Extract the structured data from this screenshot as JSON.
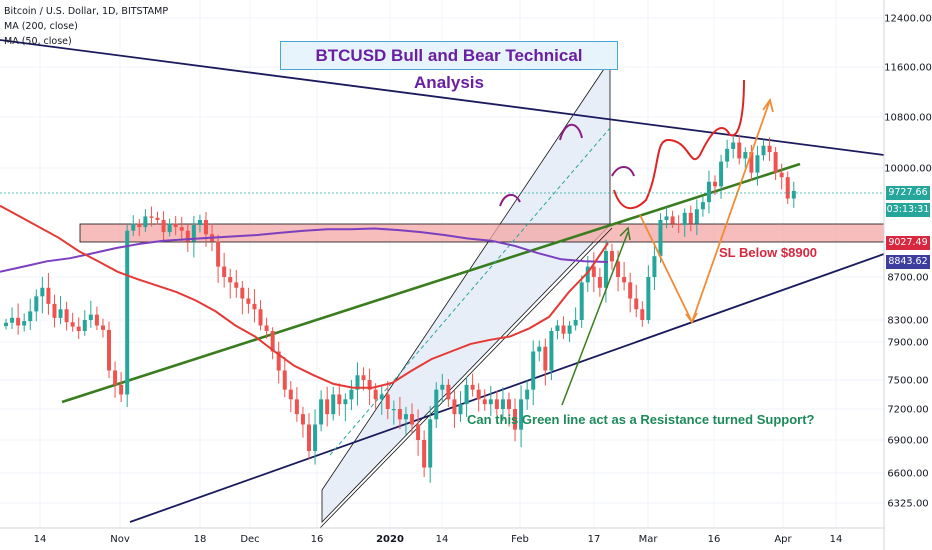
{
  "legend": {
    "symbol": "Bitcoin / U.S. Dollar, 1D, BITSTAMP",
    "ma200": "MA (200, close)",
    "ma50": "MA (50, close)"
  },
  "annotations": {
    "title": "BTCUSD Bull and Bear Technical Analysis",
    "stop_loss": "SL Below $8900",
    "question": "Can this Green line act as a Resistance turned Support?"
  },
  "price_tags": [
    {
      "label": "9727.66",
      "color": "#26a69a",
      "text_color": "#ffffff"
    },
    {
      "label": "03:13:31",
      "color": "#26a69a",
      "text_color": "#ffffff"
    },
    {
      "label": "9027.49",
      "color": "#d8283f",
      "text_color": "#ffffff"
    },
    {
      "label": "8843.62",
      "color": "#3d3d9e",
      "text_color": "#ffffff"
    }
  ],
  "colors": {
    "bull": "#26a69a",
    "bear": "#ef5350",
    "ma200": "#7b3fbf",
    "ma50": "#e53935",
    "trend_green": "#3a7d1f",
    "trend_navy": "#1a1a5e",
    "zone": "#f4a6a6",
    "channel": "#e8eef8",
    "projection": "#f28b35",
    "path_red": "#e02424",
    "arc": "#8a1e84"
  },
  "chart_data": {
    "type": "candlestick",
    "symbol": "Bitcoin / U.S. Dollar",
    "timeframe": "1D",
    "exchange": "BITSTAMP",
    "x_ticks": [
      "14",
      "Nov",
      "18",
      "Dec",
      "16",
      "2020",
      "14",
      "Feb",
      "17",
      "Mar",
      "16",
      "Apr",
      "14"
    ],
    "y_ticks": [
      12400,
      11600,
      10800,
      10000,
      9727.66,
      9027.49,
      8843.62,
      8700,
      8300,
      7900,
      7500,
      7200,
      6900,
      6600,
      6325
    ],
    "ylim": [
      6100,
      12600
    ],
    "last_price": 9727.66,
    "countdown": "03:13:31",
    "ma200_last": 8843.62,
    "ma50_last": 9027.49,
    "support_zone": [
      8950,
      9180
    ],
    "candle_closes": [
      8250,
      8320,
      8200,
      8280,
      8380,
      8520,
      8600,
      8450,
      8320,
      8400,
      8260,
      8180,
      8100,
      8300,
      8350,
      8200,
      8120,
      7600,
      7450,
      7350,
      9200,
      9300,
      9250,
      9400,
      9380,
      9350,
      9180,
      9300,
      9250,
      9200,
      9050,
      9280,
      9350,
      9150,
      9050,
      8800,
      8700,
      8650,
      8600,
      8500,
      8450,
      8400,
      8200,
      8100,
      7800,
      7600,
      7400,
      7300,
      7150,
      7050,
      6800,
      7050,
      7300,
      7150,
      7350,
      7250,
      7300,
      7400,
      7550,
      7500,
      7400,
      7300,
      7350,
      7200,
      7200,
      7100,
      7150,
      7050,
      6900,
      6650,
      7100,
      7400,
      7450,
      7300,
      7150,
      7250,
      7450,
      7400,
      7300,
      7250,
      7300,
      7200,
      7300,
      7200,
      7000,
      7300,
      7400,
      7800,
      7850,
      7600,
      8100,
      8200,
      8050,
      8200,
      8300,
      8650,
      8800,
      8700,
      8600,
      8950,
      8850,
      8700,
      8650,
      8500,
      8400,
      8300,
      8700,
      8900,
      9350,
      9400,
      9300,
      9280,
      9450,
      9300,
      9500,
      9600,
      9850,
      9800,
      10100,
      10300,
      10400,
      10150,
      10250,
      9950,
      10200,
      10350,
      10250,
      9950,
      9900,
      9650,
      9750
    ],
    "ma200_values": [
      8750,
      8800,
      8850,
      8880,
      8930,
      8980,
      9020,
      9060,
      9080,
      9100,
      9120,
      9140,
      9170,
      9200,
      9220,
      9220,
      9230,
      9210,
      9180,
      9140,
      9090,
      9060,
      9000,
      8930,
      8870,
      8850,
      8843.62
    ],
    "ma50_values": [
      9550,
      9400,
      9250,
      9100,
      8950,
      8850,
      8750,
      8680,
      8620,
      8560,
      8480,
      8380,
      8200,
      8000,
      7800,
      7650,
      7550,
      7460,
      7420,
      7420,
      7470,
      7600,
      7720,
      7800,
      7880,
      7940,
      8000,
      8150,
      8330,
      8560,
      8750,
      9027.49
    ],
    "lines": [
      {
        "name": "upper-trend",
        "from": [
          0,
          11800
        ],
        "to": [
          131,
          10050
        ]
      },
      {
        "name": "green-trend",
        "from": [
          -5,
          7300
        ],
        "to": [
          140,
          9720
        ]
      },
      {
        "name": "lower-trend",
        "from": [
          -5,
          5800
        ],
        "to": [
          140,
          8850
        ]
      }
    ]
  }
}
